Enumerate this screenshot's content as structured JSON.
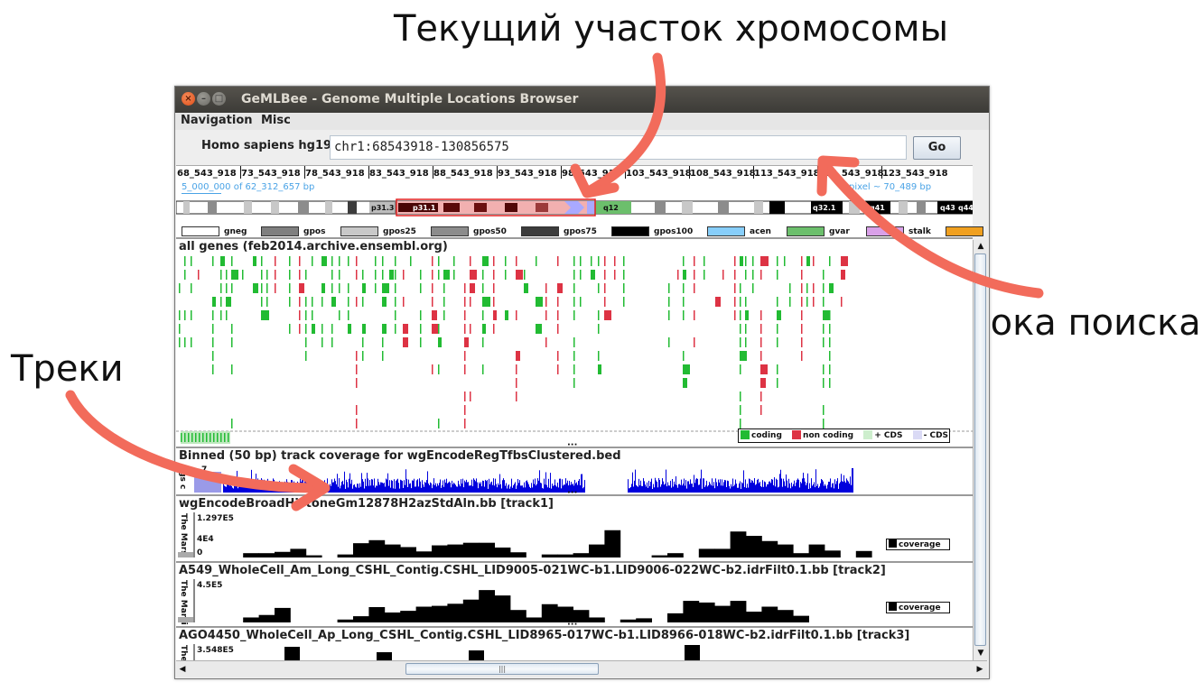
{
  "annotations": {
    "current_region": "Текущий участок хромосомы",
    "search_string": "Строка поиска",
    "tracks": "Треки"
  },
  "window": {
    "title": "GeMLBee - Genome Multiple Locations Browser",
    "menu": [
      "Navigation",
      "Misc"
    ]
  },
  "search": {
    "organism": "Homo sapiens hg19",
    "value": "chr1:68543918-130856575",
    "go_label": "Go"
  },
  "ruler": {
    "ticks": [
      "68_543_918",
      "73_543_918",
      "78_543_918",
      "83_543_918",
      "88_543_918",
      "93_543_918",
      "98_543_918",
      "103_543_918",
      "108_543_918",
      "113_543_918",
      "118_543_918",
      "123_543_918"
    ],
    "span_text": "5_000_000 of 62_312_657 bp",
    "pixel_text": "pixel ~ 70_489 bp"
  },
  "ideogram": {
    "bands": [
      "p31.3",
      "p31.1",
      "q12",
      "q32.1",
      "q41",
      "q43",
      "q44"
    ]
  },
  "band_legend": [
    {
      "label": "gneg",
      "color": "#ffffff"
    },
    {
      "label": "gpos",
      "color": "#7f7f7f"
    },
    {
      "label": "gpos25",
      "color": "#c8c8c8"
    },
    {
      "label": "gpos50",
      "color": "#8c8c8c"
    },
    {
      "label": "gpos75",
      "color": "#3c3c3c"
    },
    {
      "label": "gpos100",
      "color": "#000000"
    },
    {
      "label": "acen",
      "color": "#87cefa"
    },
    {
      "label": "gvar",
      "color": "#6cbf6c"
    },
    {
      "label": "stalk",
      "color": "#d9a0e8"
    },
    {
      "label": "",
      "color": "#f0a020"
    }
  ],
  "tracks": {
    "genes": {
      "title": "all genes (feb2014.archive.ensembl.org)",
      "legend": {
        "coding": "coding",
        "non_coding": "non coding",
        "plus_cds": "+ CDS",
        "minus_cds": "- CDS"
      },
      "colors": {
        "coding": "#22bb33",
        "non_coding": "#dd3344"
      }
    },
    "binned": {
      "title": "Binned (50 bp) track coverage for wgEncodeRegTfbsClustered.bed",
      "side_label": "ags c",
      "zero": "0",
      "max": "7"
    },
    "track1": {
      "title": "wgEncodeBroadHistoneGm12878H2azStdAln.bb [track1]",
      "ymax": "1.297E5",
      "ymid": "4E4",
      "zero": "0",
      "side_label": "The Marsi",
      "legend": "coverage",
      "values": [
        0.0,
        0.0,
        0.0,
        0.1,
        0.1,
        0.13,
        0.2,
        0.05,
        0.0,
        0.07,
        0.33,
        0.4,
        0.3,
        0.24,
        0.14,
        0.28,
        0.3,
        0.34,
        0.34,
        0.23,
        0.12,
        0.0,
        0.07,
        0.07,
        0.1,
        0.3,
        0.63,
        0.0,
        0.0,
        0.05,
        0.1,
        0.0,
        0.2,
        0.2,
        0.6,
        0.5,
        0.38,
        0.3,
        0.1,
        0.3,
        0.16,
        0.0,
        0.15,
        0.0,
        0.0,
        0.0,
        0.0,
        0.0
      ]
    },
    "track2": {
      "title": "A549_WholeCell_Am_Long_CSHL_Contig.CSHL_LID9005-021WC-b1.LID9006-022WC-b2.idrFilt0.1.bb [track2]",
      "ymax": "4.5E5",
      "side_label": "The Marsi",
      "legend": "coverage",
      "values": [
        0.0,
        0.0,
        0.0,
        0.12,
        0.18,
        0.35,
        0.0,
        0.0,
        0.0,
        0.07,
        0.15,
        0.37,
        0.24,
        0.28,
        0.38,
        0.4,
        0.45,
        0.55,
        0.78,
        0.65,
        0.3,
        0.12,
        0.44,
        0.38,
        0.3,
        0.12,
        0.0,
        0.07,
        0.1,
        0.0,
        0.22,
        0.52,
        0.48,
        0.4,
        0.52,
        0.26,
        0.38,
        0.3,
        0.16,
        0.0,
        0.0,
        0.0,
        0.0,
        0.0,
        0.0,
        0.0,
        0.0,
        0.0
      ]
    },
    "track3": {
      "title": "AGO4450_WholeCell_Ap_Long_CSHL_Contig.CSHL_LID8965-017WC-b1.LID8966-018WC-b2.idrFilt0.1.bb [track3]",
      "ymax": "3.548E5",
      "side_label": "The"
    }
  }
}
